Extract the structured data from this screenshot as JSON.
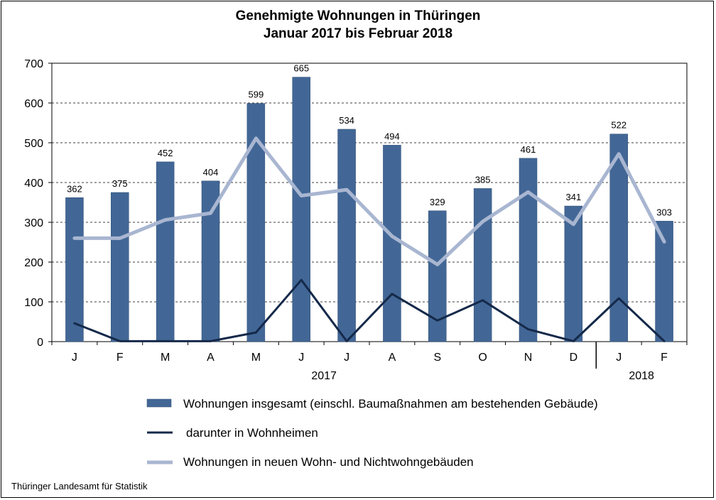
{
  "footer": {
    "source": "Thüringer Landesamt für Statistik"
  },
  "chart_data": {
    "type": "bar",
    "title": "Genehmigte Wohnungen  in Thüringen",
    "subtitle": "Januar 2017 bis Februar 2018",
    "xlabel": "",
    "ylabel": "",
    "ylim": [
      0,
      700
    ],
    "yticks": [
      0,
      100,
      200,
      300,
      400,
      500,
      600,
      700
    ],
    "grid": true,
    "categories": [
      "J",
      "F",
      "M",
      "A",
      "M",
      "J",
      "J",
      "A",
      "S",
      "O",
      "N",
      "D",
      "J",
      "F"
    ],
    "year_labels": [
      "2017",
      "2018"
    ],
    "series": [
      {
        "name": "Wohnungen insgesamt (einschl. Baumaßnahmen am bestehenden Gebäude)",
        "type": "bar",
        "color": "#426796",
        "values": [
          362,
          375,
          452,
          404,
          599,
          665,
          534,
          494,
          329,
          385,
          461,
          341,
          522,
          303
        ]
      },
      {
        "name": " darunter in Wohnheimen",
        "type": "line",
        "color": "#15294a",
        "values": [
          46,
          1,
          1,
          1,
          23,
          155,
          1,
          120,
          53,
          104,
          31,
          1,
          109,
          1
        ]
      },
      {
        "name": "Wohnungen in neuen Wohn- und Nichtwohngebäuden",
        "type": "line",
        "color": "#a9b6d1",
        "values": [
          260,
          260,
          306,
          323,
          511,
          367,
          382,
          265,
          194,
          302,
          376,
          295,
          472,
          251
        ]
      }
    ]
  }
}
